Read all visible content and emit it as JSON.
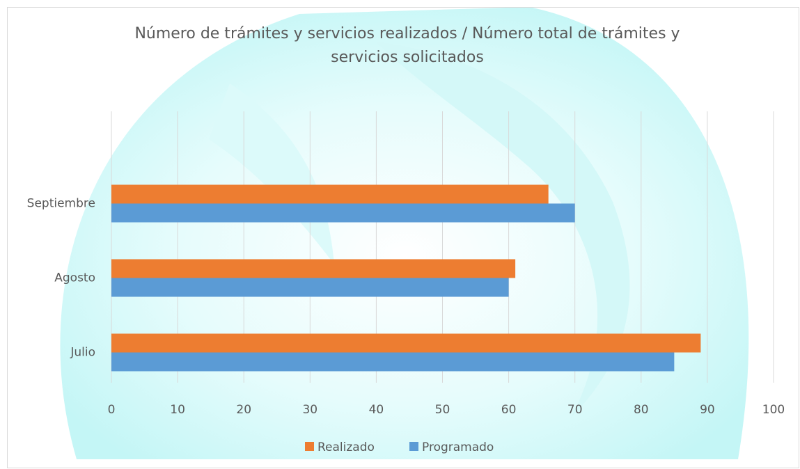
{
  "chart_data": {
    "type": "barh",
    "title": "Número de trámites y servicios realizados / Número total de trámites y servicios solicitados",
    "categories": [
      "Julio",
      "Agosto",
      "Septiembre"
    ],
    "series": [
      {
        "name": "Realizado",
        "color": "#ed7d31",
        "values": [
          89,
          61,
          66
        ]
      },
      {
        "name": "Programado",
        "color": "#5b9bd5",
        "values": [
          85,
          60,
          70
        ]
      }
    ],
    "xlim": [
      0,
      100
    ],
    "xticks": [
      0,
      10,
      20,
      30,
      40,
      50,
      60,
      70,
      80,
      90,
      100
    ],
    "grid": true,
    "legend": "bottom"
  }
}
